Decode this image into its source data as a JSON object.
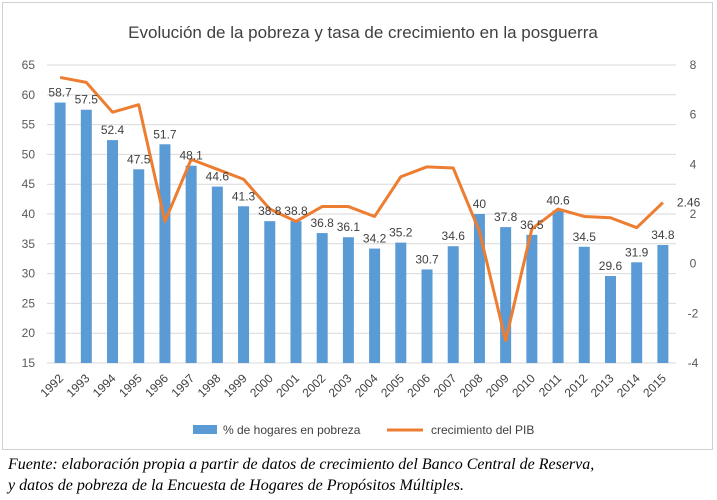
{
  "chart_data": {
    "type": "bar",
    "title": "Evolución de la pobreza y tasa de crecimiento en la posguerra",
    "categories": [
      "1992",
      "1993",
      "1994",
      "1995",
      "1996",
      "1997",
      "1998",
      "1999",
      "2000",
      "2001",
      "2002",
      "2003",
      "2004",
      "2005",
      "2006",
      "2007",
      "2008",
      "2009",
      "2010",
      "2011",
      "2012",
      "2013",
      "2014",
      "2015"
    ],
    "series": [
      {
        "name": "% de hogares en pobreza",
        "kind": "bar",
        "axis": "left",
        "color": "#5b9bd5",
        "values": [
          58.7,
          57.5,
          52.4,
          47.5,
          51.7,
          48.1,
          44.6,
          41.3,
          38.8,
          38.8,
          36.8,
          36.1,
          34.2,
          35.2,
          30.7,
          34.6,
          40,
          37.8,
          36.5,
          40.6,
          34.5,
          29.6,
          31.9,
          34.8
        ],
        "labels": [
          "58.7",
          "57.5",
          "52.4",
          "47.5",
          "51.7",
          "48.1",
          "44.6",
          "41.3",
          "38.8",
          "38.8",
          "36.8",
          "36.1",
          "34.2",
          "35.2",
          "30.7",
          "34.6",
          "40",
          "37.8",
          "36.5",
          "40.6",
          "34.5",
          "29.6",
          "31.9",
          "34.8"
        ]
      },
      {
        "name": "crecimiento del PIB",
        "kind": "line",
        "axis": "right",
        "color": "#ed7d31",
        "values": [
          7.5,
          7.3,
          6.1,
          6.4,
          1.7,
          4.2,
          3.8,
          3.4,
          2.2,
          1.7,
          2.3,
          2.3,
          1.9,
          3.5,
          3.9,
          3.85,
          1.3,
          -3.1,
          1.4,
          2.2,
          1.9,
          1.85,
          1.45,
          2.46
        ],
        "end_label": "2.46"
      }
    ],
    "y_left": {
      "min": 15,
      "max": 65,
      "ticks": [
        "15",
        "20",
        "25",
        "30",
        "35",
        "40",
        "45",
        "50",
        "55",
        "60",
        "65"
      ]
    },
    "y_right": {
      "min": -4,
      "max": 8,
      "ticks": [
        "-4",
        "-2",
        "0",
        "2",
        "4",
        "6",
        "8"
      ]
    },
    "grid": true,
    "legend_position": "bottom"
  },
  "caption": {
    "line1": "Fuente: elaboración propia a partir de datos de crecimiento  del Banco Central de Reserva,",
    "line2": "y datos de pobreza de la Encuesta de Hogares de Propósitos Múltiples."
  }
}
